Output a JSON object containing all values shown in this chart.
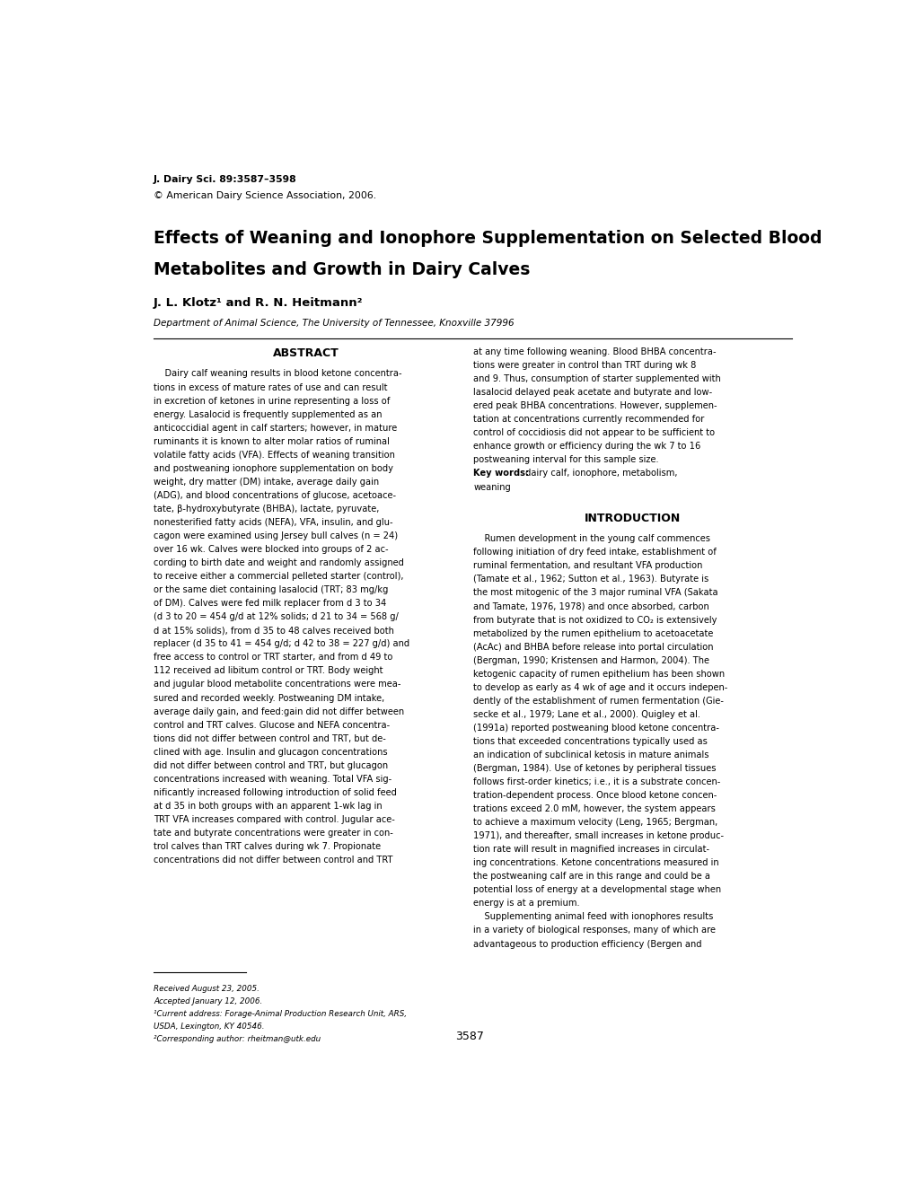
{
  "background_color": "#ffffff",
  "page_number": "3587",
  "journal_line1": "J. Dairy Sci. 89:3587–3598",
  "journal_line2": "© American Dairy Science Association, 2006.",
  "main_title_line1": "Effects of Weaning and Ionophore Supplementation on Selected Blood",
  "main_title_line2": "Metabolites and Growth in Dairy Calves",
  "authors": "J. L. Klotz¹ and R. N. Heitmann²",
  "affiliation": "Department of Animal Science, The University of Tennessee, Knoxville 37996",
  "abstract_header": "ABSTRACT",
  "abstract_text": "    Dairy calf weaning results in blood ketone concentra-\ntions in excess of mature rates of use and can result\nin excretion of ketones in urine representing a loss of\nenergy. Lasalocid is frequently supplemented as an\nanticoccidial agent in calf starters; however, in mature\nruminants it is known to alter molar ratios of ruminal\nvolatile fatty acids (VFA). Effects of weaning transition\nand postweaning ionophore supplementation on body\nweight, dry matter (DM) intake, average daily gain\n(ADG), and blood concentrations of glucose, acetoace-\ntate, β-hydroxybutyrate (BHBA), lactate, pyruvate,\nnonesterified fatty acids (NEFA), VFA, insulin, and glu-\ncagon were examined using Jersey bull calves (n = 24)\nover 16 wk. Calves were blocked into groups of 2 ac-\ncording to birth date and weight and randomly assigned\nto receive either a commercial pelleted starter (control),\nor the same diet containing lasalocid (TRT; 83 mg/kg\nof DM). Calves were fed milk replacer from d 3 to 34\n(d 3 to 20 = 454 g/d at 12% solids; d 21 to 34 = 568 g/\nd at 15% solids), from d 35 to 48 calves received both\nreplacer (d 35 to 41 = 454 g/d; d 42 to 38 = 227 g/d) and\nfree access to control or TRT starter, and from d 49 to\n112 received ad libitum control or TRT. Body weight\nand jugular blood metabolite concentrations were mea-\nsured and recorded weekly. Postweaning DM intake,\naverage daily gain, and feed:gain did not differ between\ncontrol and TRT calves. Glucose and NEFA concentra-\ntions did not differ between control and TRT, but de-\nclined with age. Insulin and glucagon concentrations\ndid not differ between control and TRT, but glucagon\nconcentrations increased with weaning. Total VFA sig-\nnificantly increased following introduction of solid feed\nat d 35 in both groups with an apparent 1-wk lag in\nTRT VFA increases compared with control. Jugular ace-\ntate and butyrate concentrations were greater in con-\ntrol calves than TRT calves during wk 7. Propionate\nconcentrations did not differ between control and TRT",
  "right_col_abstract": "at any time following weaning. Blood BHBA concentra-\ntions were greater in control than TRT during wk 8\nand 9. Thus, consumption of starter supplemented with\nlasalocid delayed peak acetate and butyrate and low-\nered peak BHBA concentrations. However, supplemen-\ntation at concentrations currently recommended for\ncontrol of coccidiosis did not appear to be sufficient to\nenhance growth or efficiency during the wk 7 to 16\npostweaning interval for this sample size.\nKey words: dairy calf, ionophore, metabolism,\nweaning",
  "intro_header": "INTRODUCTION",
  "intro_text": "    Rumen development in the young calf commences\nfollowing initiation of dry feed intake, establishment of\nruminal fermentation, and resultant VFA production\n(Tamate et al., 1962; Sutton et al., 1963). Butyrate is\nthe most mitogenic of the 3 major ruminal VFA (Sakata\nand Tamate, 1976, 1978) and once absorbed, carbon\nfrom butyrate that is not oxidized to CO₂ is extensively\nmetabolized by the rumen epithelium to acetoacetate\n(AcAc) and BHBA before release into portal circulation\n(Bergman, 1990; Kristensen and Harmon, 2004). The\nketogenic capacity of rumen epithelium has been shown\nto develop as early as 4 wk of age and it occurs indepen-\ndently of the establishment of rumen fermentation (Gie-\nsecke et al., 1979; Lane et al., 2000). Quigley et al.\n(1991a) reported postweaning blood ketone concentra-\ntions that exceeded concentrations typically used as\nan indication of subclinical ketosis in mature animals\n(Bergman, 1984). Use of ketones by peripheral tissues\nfollows first-order kinetics; i.e., it is a substrate concen-\ntration-dependent process. Once blood ketone concen-\ntrations exceed 2.0 mM, however, the system appears\nto achieve a maximum velocity (Leng, 1965; Bergman,\n1971), and thereafter, small increases in ketone produc-\ntion rate will result in magnified increases in circulat-\ning concentrations. Ketone concentrations measured in\nthe postweaning calf are in this range and could be a\npotential loss of energy at a developmental stage when\nenergy is at a premium.\n    Supplementing animal feed with ionophores results\nin a variety of biological responses, many of which are\nadvantageous to production efficiency (Bergen and",
  "footnotes": "Received August 23, 2005.\nAccepted January 12, 2006.\n¹Current address: Forage-Animal Production Research Unit, ARS,\nUSDA, Lexington, KY 40546.\n²Corresponding author: rheitman@utk.edu"
}
